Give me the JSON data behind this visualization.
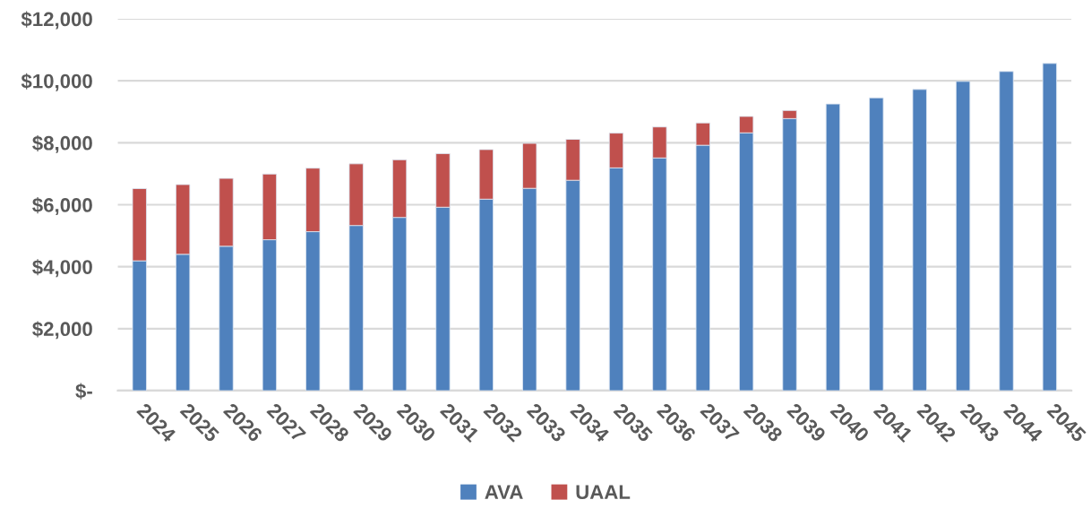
{
  "chart_data": {
    "type": "bar",
    "stacked": true,
    "categories": [
      "2024",
      "2025",
      "2026",
      "2027",
      "2028",
      "2029",
      "2030",
      "2031",
      "2032",
      "2033",
      "2034",
      "2035",
      "2036",
      "2037",
      "2038",
      "2039",
      "2040",
      "2041",
      "2042",
      "2043",
      "2044",
      "2045"
    ],
    "series": [
      {
        "name": "AVA",
        "color": "#4f81bd",
        "values": [
          4190,
          4400,
          4660,
          4870,
          5130,
          5330,
          5590,
          5920,
          6180,
          6530,
          6790,
          7190,
          7510,
          7920,
          8320,
          8780,
          9250,
          9450,
          9720,
          9980,
          10300,
          10560
        ]
      },
      {
        "name": "UAAL",
        "color": "#c0504d",
        "values": [
          2330,
          2250,
          2190,
          2120,
          2050,
          1990,
          1860,
          1730,
          1600,
          1450,
          1320,
          1120,
          1000,
          720,
          530,
          260,
          null,
          null,
          null,
          null,
          null,
          null
        ]
      }
    ],
    "ylim": [
      0,
      12000
    ],
    "yticks": [
      {
        "value": 0,
        "label": "$-"
      },
      {
        "value": 2000,
        "label": "$2,000"
      },
      {
        "value": 4000,
        "label": "$4,000"
      },
      {
        "value": 6000,
        "label": "$6,000"
      },
      {
        "value": 8000,
        "label": "$8,000"
      },
      {
        "value": 10000,
        "label": "$10,000"
      },
      {
        "value": 12000,
        "label": "$12,000"
      }
    ],
    "grid": "y",
    "legend": "bottom"
  }
}
